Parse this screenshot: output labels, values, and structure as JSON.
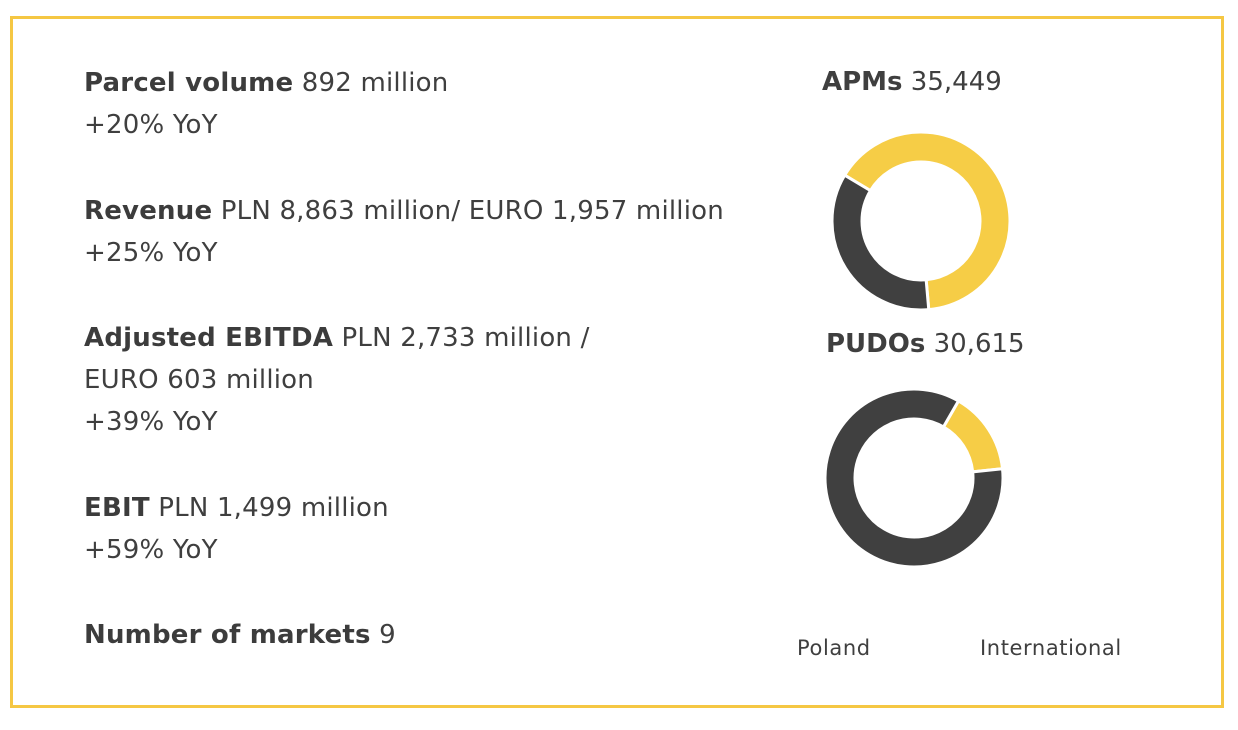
{
  "metrics": [
    {
      "label": "Parcel volume",
      "value": "892 million",
      "change": "+20% YoY"
    },
    {
      "label": "Revenue",
      "value": "PLN 8,863 million/ EURO 1,957 million",
      "change": "+25% YoY"
    },
    {
      "label": "Adjusted EBITDA",
      "value": "PLN 2,733 million /",
      "value_line2": "EURO 603 million",
      "change": "+39% YoY"
    },
    {
      "label": "EBIT",
      "value": "PLN 1,499 million",
      "change": "+59% YoY"
    },
    {
      "label": "Number of markets",
      "value": "9"
    }
  ],
  "colors": {
    "border": "#f5c743",
    "poland": "#f6cd46",
    "international": "#404040",
    "text": "#3f3f3f"
  },
  "chart_data": [
    {
      "type": "pie",
      "title": "APMs 35,449",
      "title_label": "APMs",
      "title_value": "35,449",
      "categories": [
        "Poland",
        "International"
      ],
      "values": [
        65,
        35
      ],
      "unit": "% (estimated share)",
      "legend_position": "bottom"
    },
    {
      "type": "pie",
      "title": "PUDOs 30,615",
      "title_label": "PUDOs",
      "title_value": "30,615",
      "categories": [
        "Poland",
        "International"
      ],
      "values": [
        15,
        85
      ],
      "unit": "% (estimated share)",
      "legend_position": "bottom"
    }
  ],
  "legend": {
    "poland": "Poland",
    "international": "International"
  }
}
